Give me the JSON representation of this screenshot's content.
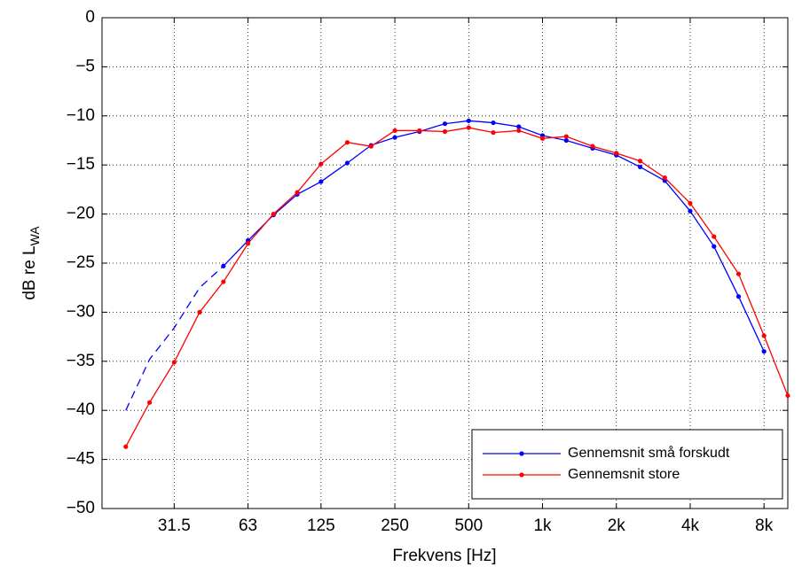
{
  "chart_data": {
    "type": "line",
    "xscale": "log",
    "xlabel": "Frekvens [Hz]",
    "ylabel": {
      "text": "dB re L",
      "subscript": "WA"
    },
    "x": [
      20,
      25,
      31.5,
      40,
      50,
      63,
      80,
      100,
      125,
      160,
      200,
      250,
      315,
      400,
      500,
      630,
      800,
      1000,
      1250,
      1600,
      2000,
      2500,
      3150,
      4000,
      5000,
      6300,
      8000,
      10000
    ],
    "series": [
      {
        "name": "Gennemsnit små forskudt",
        "color": "#0000ff",
        "marker": true,
        "dashed": false,
        "values": [
          null,
          null,
          null,
          null,
          -25.3,
          -22.7,
          -20.1,
          -18.0,
          -16.7,
          -14.8,
          -13.0,
          -12.2,
          -11.6,
          -10.8,
          -10.5,
          -10.7,
          -11.1,
          -12.0,
          -12.5,
          -13.3,
          -14.0,
          -15.2,
          -16.6,
          -19.7,
          -23.3,
          -28.4,
          -34.0,
          null
        ]
      },
      {
        "name": "Gennemsnit store",
        "color": "#ff0000",
        "marker": true,
        "dashed": false,
        "values": [
          -43.7,
          -39.2,
          -35.1,
          -30.0,
          -26.9,
          -23.0,
          -20.0,
          -17.8,
          -14.9,
          -12.7,
          -13.1,
          -11.5,
          -11.5,
          -11.6,
          -11.2,
          -11.7,
          -11.5,
          -12.3,
          -12.1,
          -13.1,
          -13.8,
          -14.6,
          -16.3,
          -18.9,
          -22.3,
          -26.1,
          -32.4,
          -38.5
        ]
      },
      {
        "color": "#0000ff",
        "marker": false,
        "dashed": true,
        "values": [
          -40.0,
          -34.8,
          -31.6,
          -27.5,
          -25.3,
          null,
          null,
          null,
          null,
          null,
          null,
          null,
          null,
          null,
          null,
          null,
          null,
          null,
          null,
          null,
          null,
          null,
          null,
          null,
          null,
          null,
          null,
          null
        ]
      }
    ],
    "xlim": [
      16,
      10000
    ],
    "ylim": [
      -50,
      0
    ],
    "xticks": [
      31.5,
      63,
      125,
      250,
      500,
      {
        "value": 1000,
        "label": "1k"
      },
      {
        "value": 2000,
        "label": "2k"
      },
      {
        "value": 4000,
        "label": "4k"
      },
      {
        "value": 8000,
        "label": "8k"
      }
    ],
    "yticks": [
      {
        "value": -50,
        "label": "−50"
      },
      {
        "value": -45,
        "label": "−45"
      },
      {
        "value": -40,
        "label": "−40"
      },
      {
        "value": -35,
        "label": "−35"
      },
      {
        "value": -30,
        "label": "−30"
      },
      {
        "value": -25,
        "label": "−25"
      },
      {
        "value": -20,
        "label": "−20"
      },
      {
        "value": -15,
        "label": "−15"
      },
      {
        "value": -10,
        "label": "−10"
      },
      {
        "value": -5,
        "label": "−5"
      },
      0
    ],
    "grid": true,
    "legend": "lower right"
  }
}
